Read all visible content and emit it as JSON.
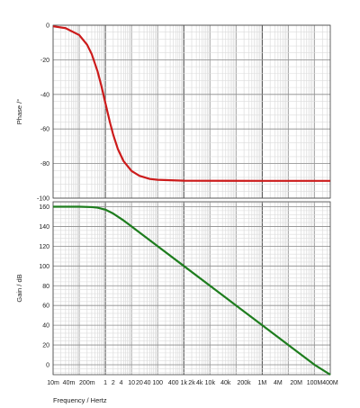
{
  "chart_data": [
    {
      "type": "line",
      "xscale": "log",
      "xlim": [
        0.01,
        400000000
      ],
      "ylim": [
        -100,
        0
      ],
      "ylabel": "Phase /°",
      "xlabel": "",
      "grid": true,
      "y_ticks": [
        0,
        -20,
        -40,
        -60,
        -80,
        -100
      ],
      "series": [
        {
          "color": "#cc1b1b",
          "x": [
            0.01,
            0.03,
            0.1,
            0.2,
            0.3,
            0.5,
            0.7,
            1,
            1.5,
            2,
            3,
            5,
            10,
            20,
            50,
            100,
            1000,
            1000000,
            400000000
          ],
          "y": [
            -0.6,
            -1.7,
            -5.7,
            -11.3,
            -16.7,
            -26.6,
            -35.0,
            -45.0,
            -56.3,
            -63.4,
            -71.6,
            -78.7,
            -84.3,
            -87.1,
            -88.9,
            -89.4,
            -89.9,
            -90,
            -90
          ]
        }
      ]
    },
    {
      "type": "line",
      "xscale": "log",
      "xlim": [
        0.01,
        400000000
      ],
      "ylim": [
        -10,
        165
      ],
      "ylabel": "Gain / dB",
      "xlabel": "Frequency / Hertz",
      "grid": true,
      "y_ticks": [
        160,
        140,
        120,
        100,
        80,
        60,
        40,
        20,
        0
      ],
      "x_tick_labels": [
        "10m",
        "40m",
        "200m",
        "1",
        "2",
        "4",
        "10",
        "20",
        "40",
        "100",
        "400",
        "1k",
        "2k",
        "4k",
        "10k",
        "40k",
        "200k",
        "1M",
        "4M",
        "20M",
        "100M",
        "400M"
      ],
      "series": [
        {
          "color": "#1e7d1e",
          "x": [
            0.01,
            0.1,
            0.3,
            0.5,
            1,
            2,
            5,
            10,
            100,
            1000,
            10000,
            100000,
            1000000,
            10000000,
            100000000,
            400000000
          ],
          "y": [
            160,
            160,
            159.6,
            159,
            157,
            153,
            146,
            140,
            120,
            100,
            80,
            60,
            40,
            20,
            0,
            -12
          ]
        }
      ]
    }
  ]
}
